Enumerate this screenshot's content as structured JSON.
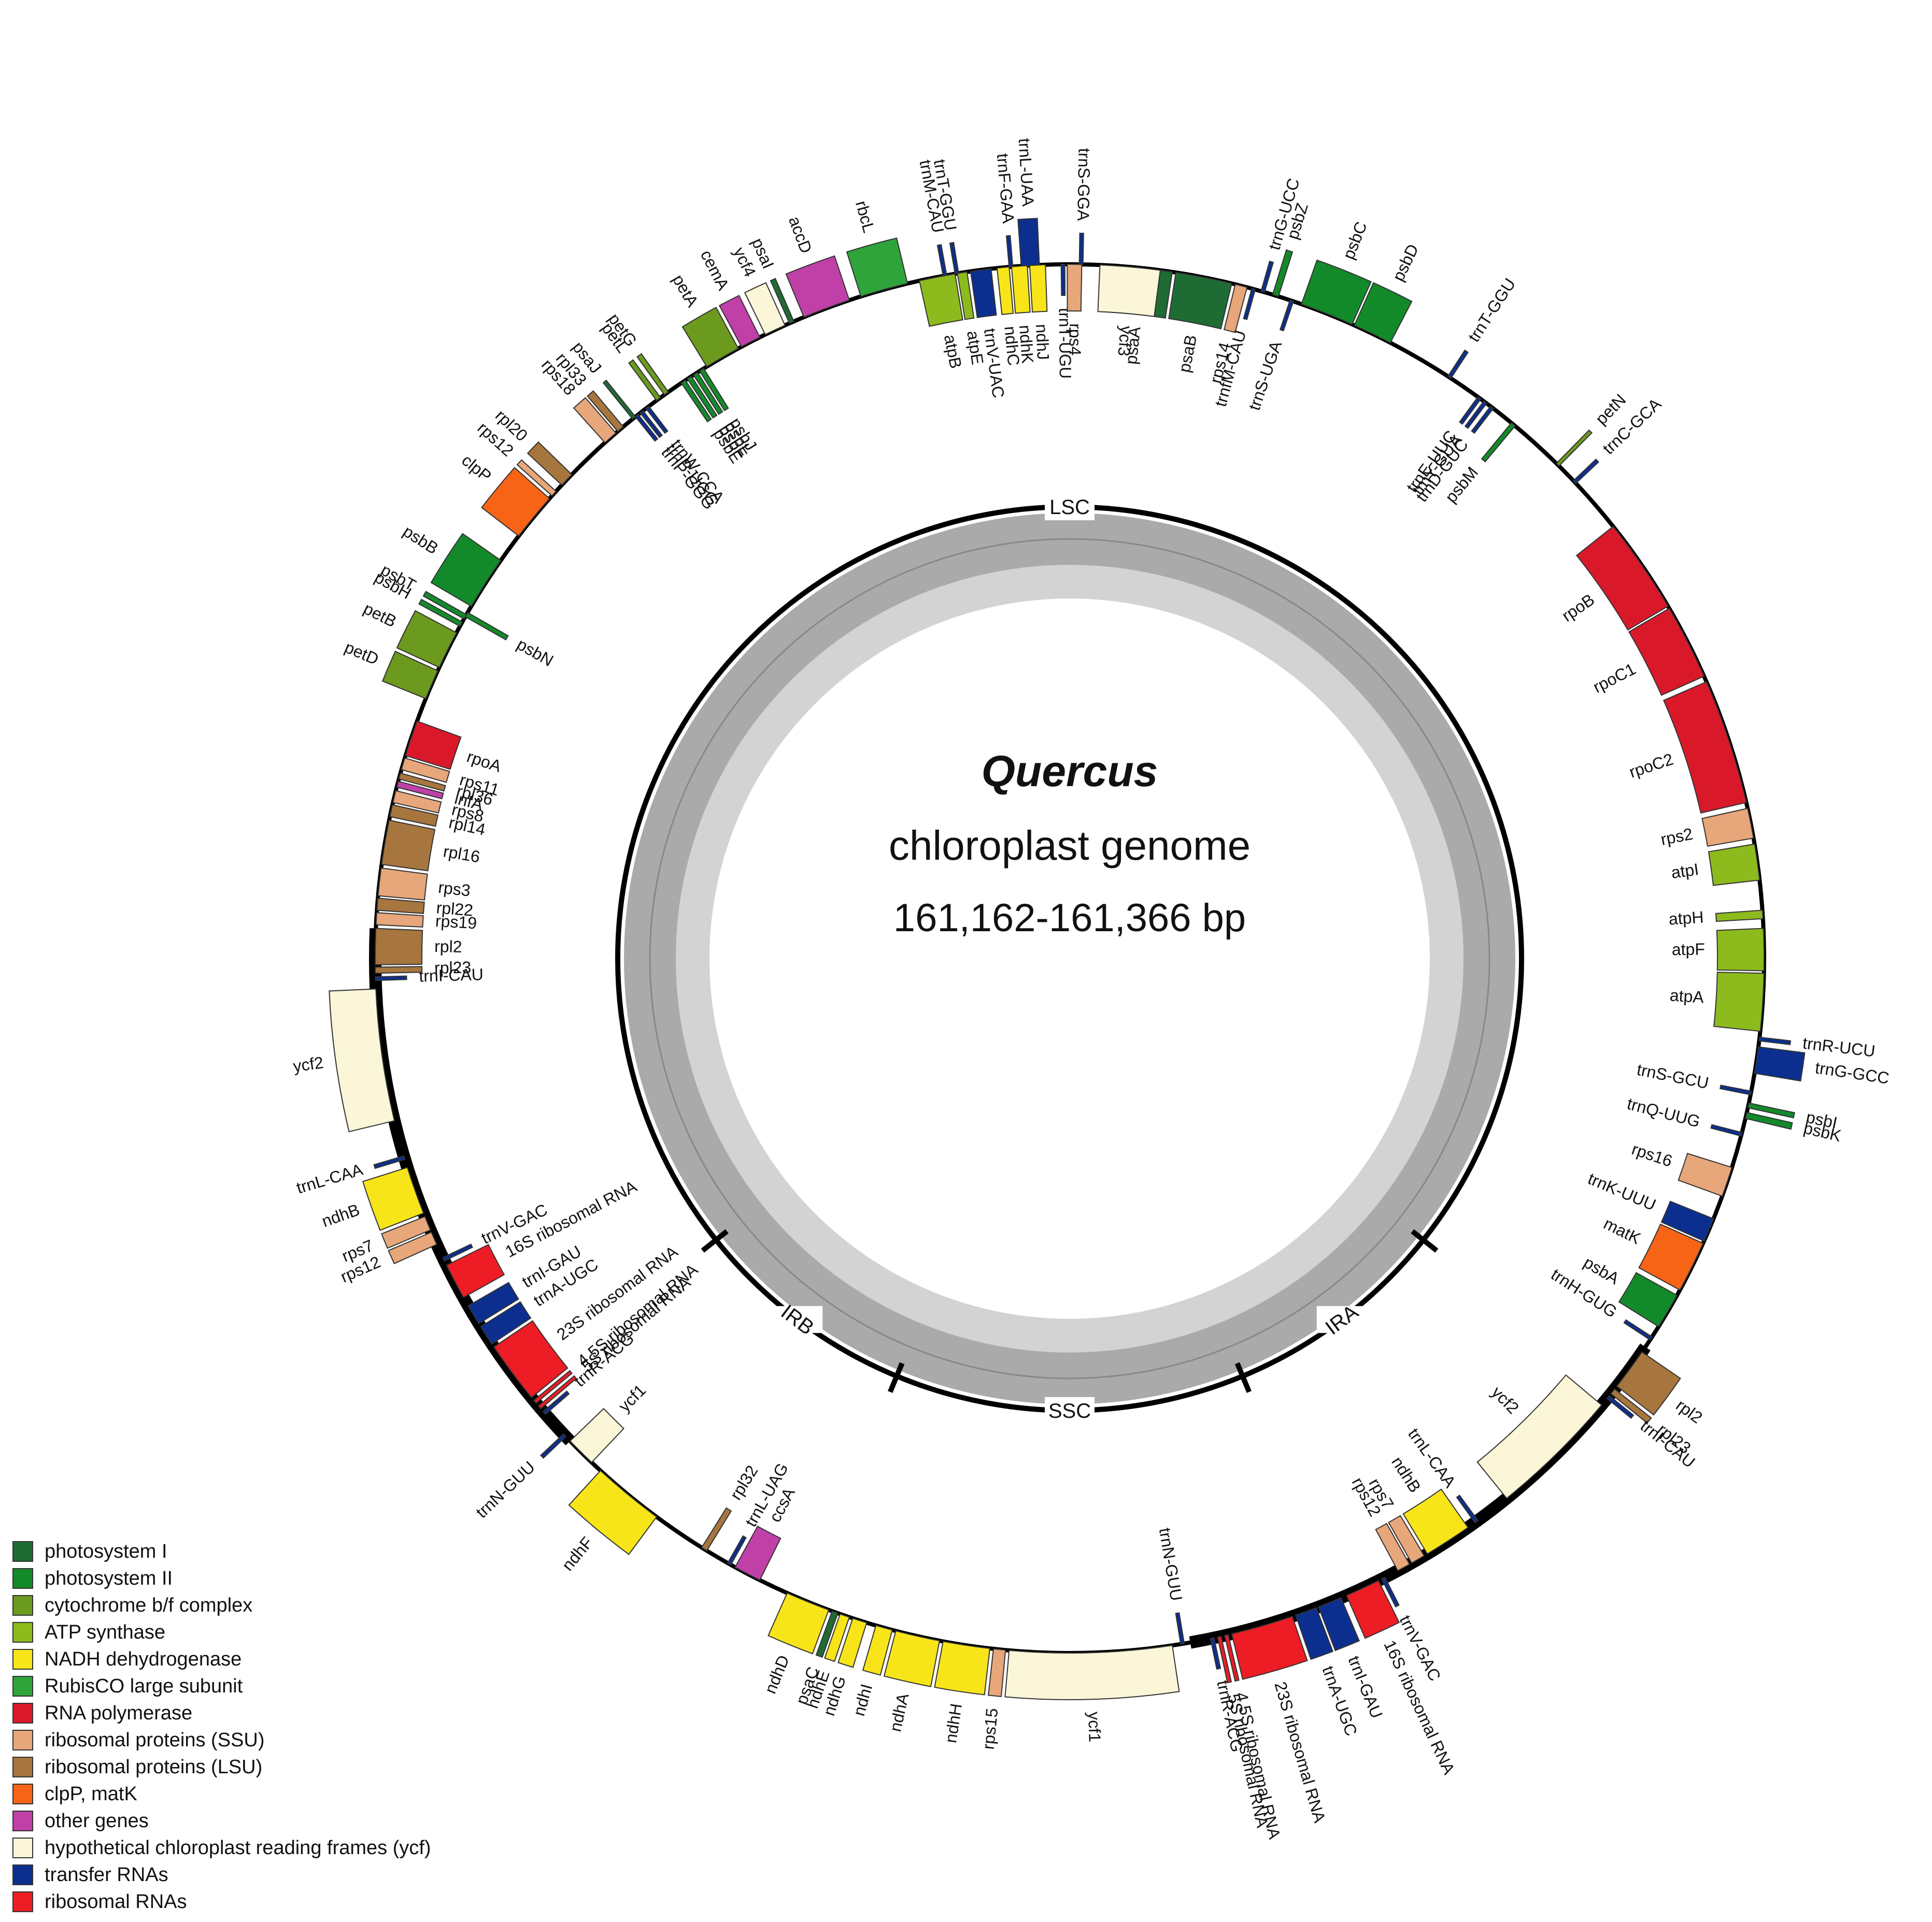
{
  "title": {
    "genus": "Quercus",
    "subtitle": "chloroplast genome",
    "length": "161,162-161,366 bp"
  },
  "colors": {
    "PSI": "#1f6b34",
    "PSII": "#138a2a",
    "cyt": "#6b9a1e",
    "ATP": "#8dbb1e",
    "NDH": "#f7e51a",
    "rbc": "#2ea43a",
    "RNAP": "#d9192a",
    "SSU": "#e7a77a",
    "LSU": "#a7753e",
    "clp": "#f76416",
    "other": "#c040a8",
    "ycf": "#fbf6d8",
    "tRNA": "#0c2f8f",
    "rRNA": "#ee1c24"
  },
  "legend": [
    {
      "key": "PSI",
      "label": "photosystem I"
    },
    {
      "key": "PSII",
      "label": "photosystem II"
    },
    {
      "key": "cyt",
      "label": "cytochrome b/f complex"
    },
    {
      "key": "ATP",
      "label": "ATP synthase"
    },
    {
      "key": "NDH",
      "label": "NADH dehydrogenase"
    },
    {
      "key": "rbc",
      "label": "RubisCO large subunit"
    },
    {
      "key": "RNAP",
      "label": "RNA polymerase"
    },
    {
      "key": "SSU",
      "label": "ribosomal proteins (SSU)"
    },
    {
      "key": "LSU",
      "label": "ribosomal proteins (LSU)"
    },
    {
      "key": "clp",
      "label": "clpP, matK"
    },
    {
      "key": "other",
      "label": "other genes"
    },
    {
      "key": "ycf",
      "label": "hypothetical chloroplast reading frames (ycf)"
    },
    {
      "key": "tRNA",
      "label": "transfer RNAs"
    },
    {
      "key": "rRNA",
      "label": "ribosomal RNAs"
    }
  ],
  "regions": [
    {
      "label": "LSC",
      "deg": 0
    },
    {
      "label": "IRA",
      "deg": 143
    },
    {
      "label": "SSC",
      "deg": 180
    },
    {
      "label": "IRB",
      "deg": 217
    }
  ],
  "genes": [
    {
      "n": "psaA",
      "c": "PSI",
      "s": 3.5,
      "e": 8.5,
      "o": 0
    },
    {
      "n": "psaB",
      "c": "PSI",
      "s": 8.8,
      "e": 13.5,
      "o": 0
    },
    {
      "n": "rps14",
      "c": "SSU",
      "s": 13.8,
      "e": 14.8,
      "o": 0
    },
    {
      "n": "trnfM-CAU",
      "c": "tRNA",
      "s": 15.2,
      "e": 15.5,
      "o": 0
    },
    {
      "n": "trnS-UGA",
      "c": "tRNA",
      "s": 18.5,
      "e": 18.8,
      "o": 0
    },
    {
      "n": "psbZ",
      "c": "PSII",
      "s": 17.0,
      "e": 17.5,
      "o": 1
    },
    {
      "n": "trnG-UCC",
      "c": "tRNA",
      "s": 16.0,
      "e": 16.3,
      "o": 1
    },
    {
      "n": "psbC",
      "c": "PSII",
      "s": 19.5,
      "e": 24.0,
      "o": 1
    },
    {
      "n": "psbD",
      "c": "PSII",
      "s": 24.2,
      "e": 27.5,
      "o": 1
    },
    {
      "n": "trnT-GGU",
      "c": "tRNA",
      "s": 33.0,
      "e": 33.3,
      "o": 1
    },
    {
      "n": "trnE-UUC",
      "c": "tRNA",
      "s": 36.0,
      "e": 36.3,
      "o": 0
    },
    {
      "n": "trnY-GUA",
      "c": "tRNA",
      "s": 36.6,
      "e": 36.9,
      "o": 0
    },
    {
      "n": "trnD-GUC",
      "c": "tRNA",
      "s": 37.3,
      "e": 37.6,
      "o": 0
    },
    {
      "n": "psbM",
      "c": "PSII",
      "s": 39.5,
      "e": 39.9,
      "o": 0
    },
    {
      "n": "petN",
      "c": "cyt",
      "s": 44.5,
      "e": 44.8,
      "o": 1
    },
    {
      "n": "trnC-GCA",
      "c": "tRNA",
      "s": 46.5,
      "e": 46.8,
      "o": 1
    },
    {
      "n": "rpoB",
      "c": "RNAP",
      "s": 51.5,
      "e": 59.5,
      "o": 0
    },
    {
      "n": "rpoC1",
      "c": "RNAP",
      "s": 59.7,
      "e": 66.0,
      "o": 0
    },
    {
      "n": "rpoC2",
      "c": "RNAP",
      "s": 66.5,
      "e": 77.0,
      "o": 0
    },
    {
      "n": "rps2",
      "c": "SSU",
      "s": 77.5,
      "e": 80.0,
      "o": 0
    },
    {
      "n": "atpI",
      "c": "ATP",
      "s": 80.5,
      "e": 83.5,
      "o": 0
    },
    {
      "n": "atpH",
      "c": "ATP",
      "s": 86.0,
      "e": 86.7,
      "o": 0
    },
    {
      "n": "atpF",
      "c": "ATP",
      "s": 87.5,
      "e": 91.0,
      "o": 0
    },
    {
      "n": "atpA",
      "c": "ATP",
      "s": 91.2,
      "e": 96.0,
      "o": 0
    },
    {
      "n": "trnR-UCU",
      "c": "tRNA",
      "s": 96.5,
      "e": 96.8,
      "o": 1
    },
    {
      "n": "trnG-GCC",
      "c": "tRNA",
      "s": 97.3,
      "e": 99.5,
      "o": 1
    },
    {
      "n": "psbI",
      "c": "PSII",
      "s": 102.0,
      "e": 102.4,
      "o": 1
    },
    {
      "n": "psbK",
      "c": "PSII",
      "s": 102.8,
      "e": 103.3,
      "o": 1
    },
    {
      "n": "trnS-GCU",
      "c": "tRNA",
      "s": 101.0,
      "e": 101.3,
      "o": 0
    },
    {
      "n": "trnQ-UUG",
      "c": "tRNA",
      "s": 104.5,
      "e": 104.8,
      "o": 0
    },
    {
      "n": "rps16",
      "c": "SSU",
      "s": 107.5,
      "e": 110.0,
      "o": 0
    },
    {
      "n": "trnK-UUU",
      "c": "tRNA",
      "s": 112.0,
      "e": 114.0,
      "o": 0
    },
    {
      "n": "matK",
      "c": "clp",
      "s": 114.2,
      "e": 118.5,
      "o": 0
    },
    {
      "n": "psbA",
      "c": "PSII",
      "s": 119.0,
      "e": 122.0,
      "o": 0
    },
    {
      "n": "trnH-GUG",
      "c": "tRNA",
      "s": 123.0,
      "e": 123.3,
      "o": 0
    },
    {
      "n": "rpl2",
      "c": "LSU",
      "s": 124.5,
      "e": 128.0,
      "o": 1
    },
    {
      "n": "rpl23",
      "c": "LSU",
      "s": 128.3,
      "e": 128.8,
      "o": 1
    },
    {
      "n": "trnI-CAU",
      "c": "tRNA",
      "s": 129.0,
      "e": 129.3,
      "o": 1
    },
    {
      "n": "ycf2",
      "c": "ycf",
      "s": 130.0,
      "e": 141.0,
      "o": 0
    },
    {
      "n": "trnL-CAA",
      "c": "tRNA",
      "s": 144.0,
      "e": 144.3,
      "o": 0
    },
    {
      "n": "ndhB",
      "c": "NDH",
      "s": 145.0,
      "e": 149.0,
      "o": 0
    },
    {
      "n": "rps7",
      "c": "SSU",
      "s": 149.3,
      "e": 150.5,
      "o": 0
    },
    {
      "n": "rps12",
      "c": "SSU",
      "s": 150.7,
      "e": 151.8,
      "o": 0
    },
    {
      "n": "trnV-GAC",
      "c": "tRNA",
      "s": 153.0,
      "e": 153.3,
      "o": 1
    },
    {
      "n": "16S ribosomal RNA",
      "c": "rRNA",
      "s": 153.6,
      "e": 156.5,
      "o": 1
    },
    {
      "n": "trnI-GAU",
      "c": "tRNA",
      "s": 157.0,
      "e": 159.0,
      "o": 1
    },
    {
      "n": "trnA-UGC",
      "c": "tRNA",
      "s": 159.2,
      "e": 161.0,
      "o": 1
    },
    {
      "n": "23S ribosomal RNA",
      "c": "rRNA",
      "s": 161.3,
      "e": 166.5,
      "o": 1
    },
    {
      "n": "4.5S ribosomal RNA",
      "c": "rRNA",
      "s": 166.8,
      "e": 167.1,
      "o": 1
    },
    {
      "n": "5S ribosomal RNA",
      "c": "rRNA",
      "s": 167.4,
      "e": 167.7,
      "o": 1
    },
    {
      "n": "trnR-ACG",
      "c": "tRNA",
      "s": 168.0,
      "e": 168.3,
      "o": 1
    },
    {
      "n": "trnN-GUU",
      "c": "tRNA",
      "s": 170.5,
      "e": 170.8,
      "o": 0
    },
    {
      "n": "ycf1",
      "c": "ycf",
      "s": 171.5,
      "e": 185.0,
      "o": 1
    },
    {
      "n": "rps15",
      "c": "SSU",
      "s": 185.3,
      "e": 186.3,
      "o": 1
    },
    {
      "n": "ndhH",
      "c": "NDH",
      "s": 186.6,
      "e": 190.5,
      "o": 1
    },
    {
      "n": "ndhA",
      "c": "NDH",
      "s": 190.8,
      "e": 194.5,
      "o": 1
    },
    {
      "n": "ndhI",
      "c": "NDH",
      "s": 194.8,
      "e": 196.2,
      "o": 1
    },
    {
      "n": "ndhG",
      "c": "NDH",
      "s": 197.0,
      "e": 198.2,
      "o": 1
    },
    {
      "n": "ndhE",
      "c": "NDH",
      "s": 198.5,
      "e": 199.3,
      "o": 1
    },
    {
      "n": "psaC",
      "c": "PSI",
      "s": 199.5,
      "e": 200.0,
      "o": 1
    },
    {
      "n": "ndhD",
      "c": "NDH",
      "s": 200.3,
      "e": 204.0,
      "o": 1
    },
    {
      "n": "ccsA",
      "c": "other",
      "s": 206.5,
      "e": 208.8,
      "o": 0
    },
    {
      "n": "trnL-UAG",
      "c": "tRNA",
      "s": 209.2,
      "e": 209.5,
      "o": 0
    },
    {
      "n": "rpl32",
      "c": "LSU",
      "s": 211.5,
      "e": 212.0,
      "o": 0
    },
    {
      "n": "ndhF",
      "c": "NDH",
      "s": 216.5,
      "e": 222.5,
      "o": 1
    },
    {
      "n": "ycf1",
      "c": "ycf",
      "s": 223.5,
      "e": 226.0,
      "o": 0
    },
    {
      "n": "trnN-GUU",
      "c": "tRNA",
      "s": 226.5,
      "e": 226.8,
      "o": 1
    },
    {
      "n": "trnR-ACG",
      "c": "tRNA",
      "s": 229.0,
      "e": 229.3,
      "o": 0
    },
    {
      "n": "5S ribosomal RNA",
      "c": "rRNA",
      "s": 229.6,
      "e": 229.9,
      "o": 0
    },
    {
      "n": "4.5S ribosomal RNA",
      "c": "rRNA",
      "s": 230.2,
      "e": 230.5,
      "o": 0
    },
    {
      "n": "23S ribosomal RNA",
      "c": "rRNA",
      "s": 230.8,
      "e": 236.0,
      "o": 0
    },
    {
      "n": "trnA-UGC",
      "c": "tRNA",
      "s": 236.3,
      "e": 238.0,
      "o": 0
    },
    {
      "n": "trnI-GAU",
      "c": "tRNA",
      "s": 238.3,
      "e": 240.0,
      "o": 0
    },
    {
      "n": "16S ribosomal RNA",
      "c": "rRNA",
      "s": 240.8,
      "e": 243.8,
      "o": 0
    },
    {
      "n": "trnV-GAC",
      "c": "tRNA",
      "s": 244.2,
      "e": 244.5,
      "o": 0
    },
    {
      "n": "rps12",
      "c": "SSU",
      "s": 245.7,
      "e": 246.8,
      "o": 1
    },
    {
      "n": "rps7",
      "c": "SSU",
      "s": 247.0,
      "e": 248.2,
      "o": 1
    },
    {
      "n": "ndhB",
      "c": "NDH",
      "s": 248.5,
      "e": 252.5,
      "o": 1
    },
    {
      "n": "trnL-CAA",
      "c": "tRNA",
      "s": 253.2,
      "e": 253.5,
      "o": 1
    },
    {
      "n": "ycf2",
      "c": "ycf",
      "s": 256.5,
      "e": 267.5,
      "o": 1
    },
    {
      "n": "trnI-CAU",
      "c": "tRNA",
      "s": 268.2,
      "e": 268.5,
      "o": 0
    },
    {
      "n": "rpl23",
      "c": "LSU",
      "s": 268.8,
      "e": 269.3,
      "o": 0
    },
    {
      "n": "rpl2",
      "c": "LSU",
      "s": 269.5,
      "e": 272.5,
      "o": 0
    },
    {
      "n": "rps19",
      "c": "SSU",
      "s": 272.8,
      "e": 273.8,
      "o": 0
    },
    {
      "n": "rpl22",
      "c": "LSU",
      "s": 274.0,
      "e": 275.0,
      "o": 0
    },
    {
      "n": "rps3",
      "c": "SSU",
      "s": 275.2,
      "e": 277.5,
      "o": 0
    },
    {
      "n": "rpl16",
      "c": "LSU",
      "s": 277.8,
      "e": 281.5,
      "o": 0
    },
    {
      "n": "rpl14",
      "c": "LSU",
      "s": 281.8,
      "e": 282.8,
      "o": 0
    },
    {
      "n": "rps8",
      "c": "SSU",
      "s": 283.0,
      "e": 284.0,
      "o": 0
    },
    {
      "n": "infA",
      "c": "other",
      "s": 284.3,
      "e": 284.8,
      "o": 0
    },
    {
      "n": "rpl36",
      "c": "LSU",
      "s": 285.0,
      "e": 285.5,
      "o": 0
    },
    {
      "n": "rps11",
      "c": "SSU",
      "s": 285.8,
      "e": 286.8,
      "o": 0
    },
    {
      "n": "rpoA",
      "c": "RNAP",
      "s": 287.0,
      "e": 290.0,
      "o": 0
    },
    {
      "n": "petD",
      "c": "cyt",
      "s": 292.0,
      "e": 294.5,
      "o": 1
    },
    {
      "n": "petB",
      "c": "cyt",
      "s": 294.8,
      "e": 298.0,
      "o": 1
    },
    {
      "n": "psbH",
      "c": "PSII",
      "s": 298.6,
      "e": 299.0,
      "o": 1
    },
    {
      "n": "psbT",
      "c": "PSII",
      "s": 299.3,
      "e": 299.7,
      "o": 1
    },
    {
      "n": "psbN",
      "c": "PSII",
      "s": 299.5,
      "e": 299.9,
      "o": 0
    },
    {
      "n": "psbB",
      "c": "PSII",
      "s": 300.5,
      "e": 305.0,
      "o": 1
    },
    {
      "n": "clpP",
      "c": "clp",
      "s": 307.5,
      "e": 311.5,
      "o": 1
    },
    {
      "n": "rps12",
      "c": "SSU",
      "s": 311.8,
      "e": 312.3,
      "o": 1
    },
    {
      "n": "rpl20",
      "c": "LSU",
      "s": 313.0,
      "e": 314.2,
      "o": 1
    },
    {
      "n": "rps18",
      "c": "SSU",
      "s": 318.0,
      "e": 319.2,
      "o": 1
    },
    {
      "n": "rpl33",
      "c": "LSU",
      "s": 319.4,
      "e": 320.0,
      "o": 1
    },
    {
      "n": "psaJ",
      "c": "PSI",
      "s": 321.0,
      "e": 321.3,
      "o": 1
    },
    {
      "n": "trnP-GGG",
      "c": "tRNA",
      "s": 321.3,
      "e": 321.6,
      "o": 0
    },
    {
      "n": "trnP-UGG",
      "c": "tRNA",
      "s": 321.8,
      "e": 322.1,
      "o": 0
    },
    {
      "n": "trnW-CCA",
      "c": "tRNA",
      "s": 322.4,
      "e": 322.7,
      "o": 0
    },
    {
      "n": "petL",
      "c": "cyt",
      "s": 323.5,
      "e": 323.9,
      "o": 1
    },
    {
      "n": "petG",
      "c": "cyt",
      "s": 324.3,
      "e": 324.7,
      "o": 1
    },
    {
      "n": "psbE",
      "c": "PSII",
      "s": 326.0,
      "e": 326.4,
      "o": 0
    },
    {
      "n": "psbF",
      "c": "PSII",
      "s": 326.6,
      "e": 327.0,
      "o": 0
    },
    {
      "n": "psbL",
      "c": "PSII",
      "s": 327.2,
      "e": 327.6,
      "o": 0
    },
    {
      "n": "psbJ",
      "c": "PSII",
      "s": 327.8,
      "e": 328.2,
      "o": 0
    },
    {
      "n": "petA",
      "c": "cyt",
      "s": 328.5,
      "e": 331.5,
      "o": 1
    },
    {
      "n": "cemA",
      "c": "other",
      "s": 331.8,
      "e": 333.5,
      "o": 1
    },
    {
      "n": "ycf4",
      "c": "ycf",
      "s": 334.0,
      "e": 335.8,
      "o": 1
    },
    {
      "n": "psaI",
      "c": "PSI",
      "s": 336.2,
      "e": 336.6,
      "o": 1
    },
    {
      "n": "accD",
      "c": "other",
      "s": 337.5,
      "e": 341.5,
      "o": 1
    },
    {
      "n": "rbcL",
      "c": "rbc",
      "s": 342.5,
      "e": 346.5,
      "o": 1
    },
    {
      "n": "atpB",
      "c": "ATP",
      "s": 347.5,
      "e": 350.5,
      "o": 0
    },
    {
      "n": "atpE",
      "c": "ATP",
      "s": 350.7,
      "e": 351.5,
      "o": 0
    },
    {
      "n": "trnV-UAC",
      "c": "tRNA",
      "s": 351.8,
      "e": 353.5,
      "o": 0
    },
    {
      "n": "trnM-CAU",
      "c": "tRNA",
      "s": 349.5,
      "e": 349.8,
      "o": 1
    },
    {
      "n": "trnT-GGU",
      "c": "tRNA",
      "s": 350.5,
      "e": 350.8,
      "o": 1
    },
    {
      "n": "ndhC",
      "c": "NDH",
      "s": 354.0,
      "e": 355.0,
      "o": 0
    },
    {
      "n": "ndhK",
      "c": "NDH",
      "s": 355.2,
      "e": 356.5,
      "o": 0
    },
    {
      "n": "ndhJ",
      "c": "NDH",
      "s": 356.7,
      "e": 358.0,
      "o": 0
    },
    {
      "n": "trnF-GAA",
      "c": "tRNA",
      "s": 355.0,
      "e": 355.3,
      "o": 1
    },
    {
      "n": "trnL-UAA",
      "c": "tRNA",
      "s": 356.0,
      "e": 357.5,
      "o": 1
    },
    {
      "n": "trnT-UGU",
      "c": "tRNA",
      "s": 359.3,
      "e": 359.6,
      "o": 0
    },
    {
      "n": "rps4",
      "c": "SSU",
      "s": 359.8,
      "e": 361.0,
      "o": 0
    },
    {
      "n": "trnS-GGA",
      "c": "tRNA",
      "s": 360.8,
      "e": 361.1,
      "o": 1
    },
    {
      "n": "ycf3",
      "c": "ycf",
      "s": 362.5,
      "e": 367.5,
      "o": 0
    }
  ]
}
